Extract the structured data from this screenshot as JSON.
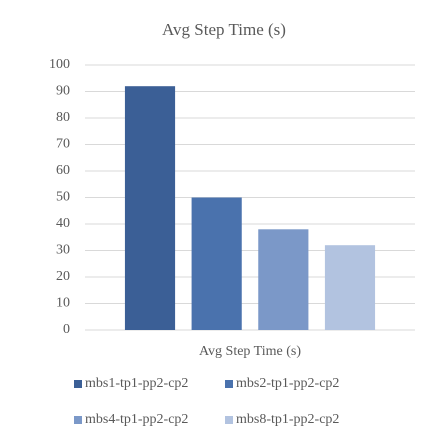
{
  "chart_data": {
    "type": "bar",
    "title": "Avg Step Time (s)",
    "categories": [
      "Avg Step Time (s)"
    ],
    "series": [
      {
        "name": "mbs1-tp1-pp2-cp2",
        "color": "#3b5f96",
        "values": [
          92
        ]
      },
      {
        "name": "mbs2-tp1-pp2-cp2",
        "color": "#4a72ad",
        "values": [
          50
        ]
      },
      {
        "name": "mbs4-tp1-pp2-cp2",
        "color": "#7b98c8",
        "values": [
          38
        ]
      },
      {
        "name": "mbs8-tp1-pp2-cp2",
        "color": "#b2c3e0",
        "values": [
          32
        ]
      }
    ],
    "ylim": [
      0,
      100
    ],
    "yticks": [
      0,
      10,
      20,
      30,
      40,
      50,
      60,
      70,
      80,
      90,
      100
    ],
    "grid": true,
    "legend": "bottom"
  }
}
